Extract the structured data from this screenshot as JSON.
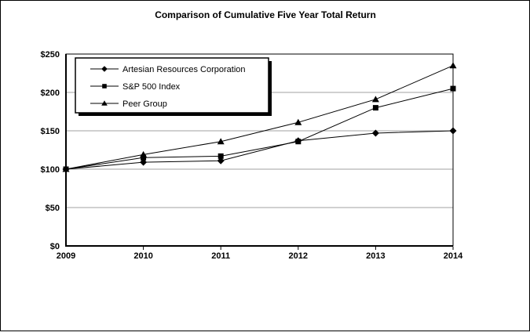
{
  "chart_data": {
    "type": "line",
    "title": "Comparison of Cumulative Five Year Total Return",
    "x": [
      2009,
      2010,
      2011,
      2012,
      2013,
      2014
    ],
    "xtick_labels": [
      "2009",
      "2010",
      "2011",
      "2012",
      "2013",
      "2014"
    ],
    "ytick_labels": [
      "$0",
      "$50",
      "$100",
      "$150",
      "$200",
      "$250"
    ],
    "ylim": [
      0,
      250
    ],
    "ytick_step": 50,
    "grid": "horizontal",
    "legend_position": "top-left-inside",
    "series": [
      {
        "name": "Artesian Resources Corporation",
        "marker": "diamond",
        "values": [
          100,
          109,
          111,
          137,
          147,
          150
        ]
      },
      {
        "name": "S&P 500 Index",
        "marker": "square",
        "values": [
          100,
          115,
          117,
          136,
          180,
          205
        ]
      },
      {
        "name": "Peer Group",
        "marker": "triangle",
        "values": [
          100,
          119,
          136,
          161,
          191,
          235
        ]
      }
    ],
    "colors": {
      "line": "#000000",
      "marker": "#000000",
      "grid": "#A0A0A0",
      "axis": "#000000",
      "background": "#FFFFFF",
      "legend_border": "#000000",
      "legend_shadow": "#000000"
    }
  }
}
